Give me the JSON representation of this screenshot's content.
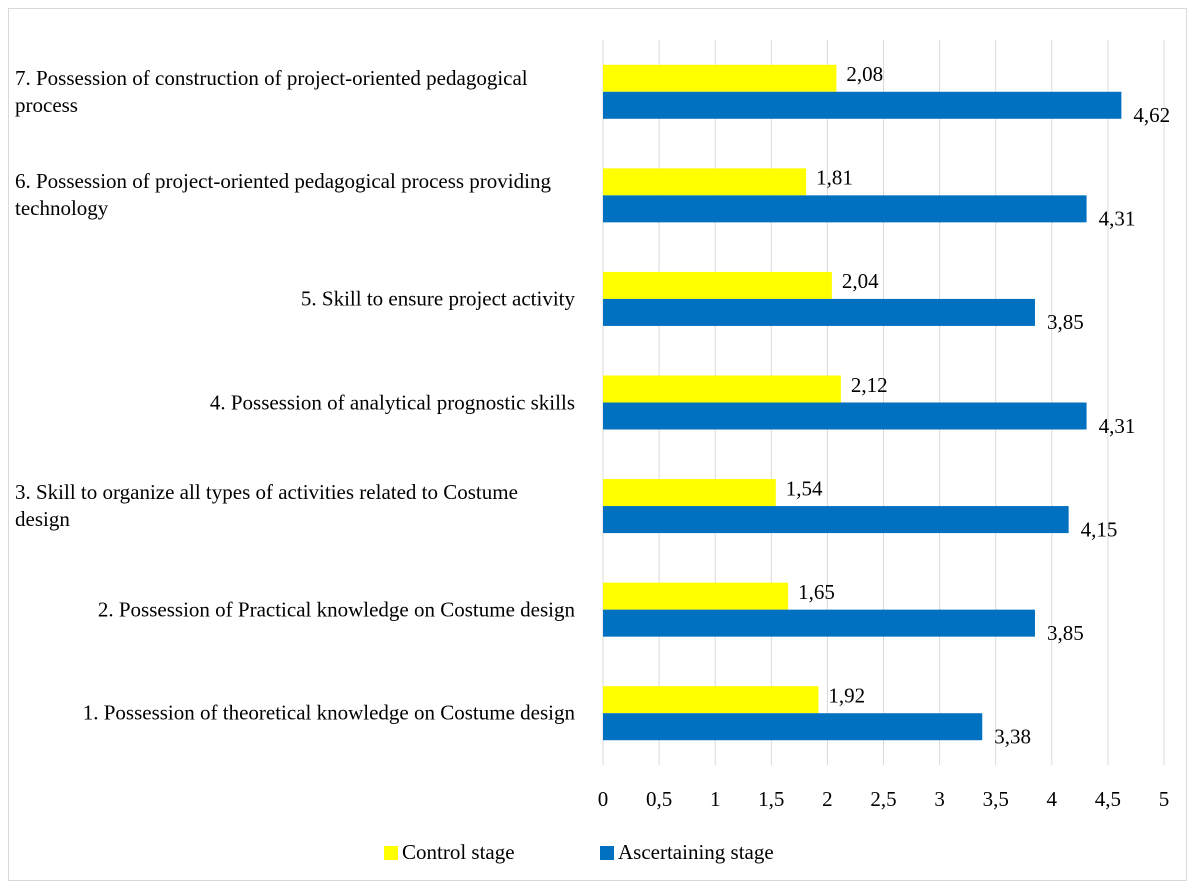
{
  "chart_data": {
    "type": "bar",
    "orientation": "horizontal",
    "categories": [
      "1. Possession of theoretical knowledge on Costume design",
      "2. Possession of Practical knowledge on Costume design",
      "3. Skill to organize all types of activities related to Costume design",
      "4. Possession of analytical prognostic skills",
      "5. Skill to ensure project activity",
      "6. Possession of project-oriented pedagogical process providing technology",
      "7. Possession of construction of project-oriented pedagogical process"
    ],
    "series": [
      {
        "name": "Control stage",
        "color": "#ffff00",
        "values": [
          1.92,
          1.65,
          1.54,
          2.12,
          2.04,
          1.81,
          2.08
        ],
        "value_labels": [
          "1,92",
          "1,65",
          "1,54",
          "2,12",
          "2,04",
          "1,81",
          "2,08"
        ]
      },
      {
        "name": "Ascertaining stage",
        "color": "#0070c0",
        "values": [
          3.38,
          3.85,
          4.15,
          4.31,
          3.85,
          4.31,
          4.62
        ],
        "value_labels": [
          "3,38",
          "3,85",
          "4,15",
          "4,31",
          "3,85",
          "4,31",
          "4,62"
        ]
      }
    ],
    "xlim": [
      0,
      5
    ],
    "xticks": [
      0,
      {
        "value": 0.5,
        "label": "0,5"
      },
      1,
      {
        "value": 1.5,
        "label": "1,5"
      },
      2,
      {
        "value": 2.5,
        "label": "2,5"
      },
      3,
      {
        "value": 3.5,
        "label": "3,5"
      },
      4,
      {
        "value": 4.5,
        "label": "4,5"
      },
      5
    ],
    "grid": true,
    "legend": "bottom"
  }
}
